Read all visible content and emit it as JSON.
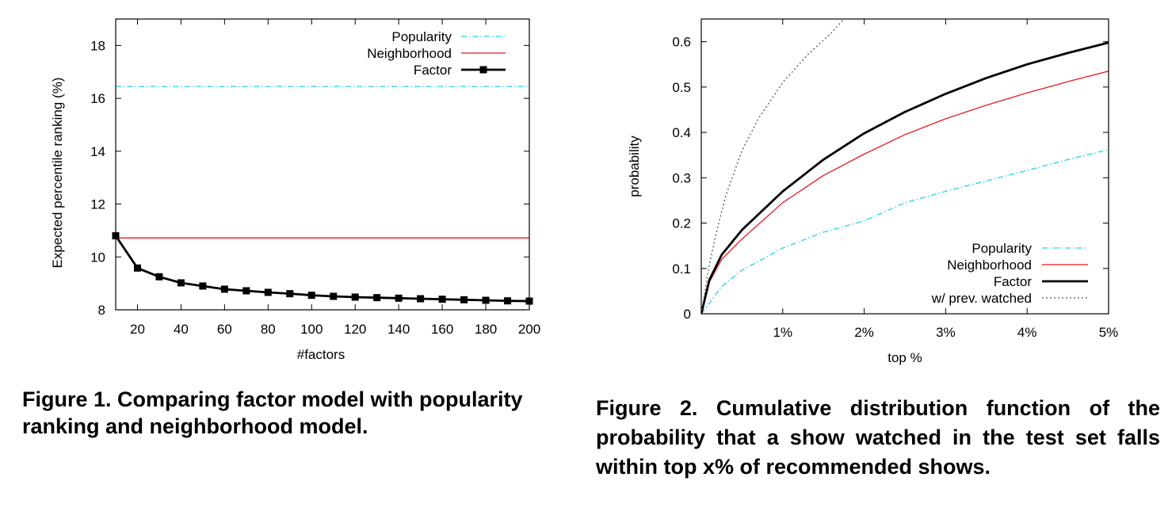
{
  "colors": {
    "popularity": "#22d4e6",
    "neighborhood": "#e8181f",
    "factor": "#000000",
    "prev_watched": "#555555"
  },
  "charts": [
    {
      "chart_data": {
        "type": "line",
        "xlabel": "#factors",
        "ylabel": "Expected percentile ranking (%)",
        "xlim": [
          10,
          200
        ],
        "ylim": [
          8,
          19
        ],
        "xticks": [
          "20",
          "40",
          "60",
          "80",
          "100",
          "120",
          "140",
          "160",
          "180",
          "200"
        ],
        "yticks": [
          "8",
          "10",
          "12",
          "14",
          "16",
          "18"
        ],
        "legend_position": "top-right",
        "grid": false,
        "series": [
          {
            "name": "Popularity",
            "style": "dash-dot",
            "color": "#22d4e6",
            "x": [
              10,
              200
            ],
            "y": [
              16.45,
              16.45
            ]
          },
          {
            "name": "Neighborhood",
            "style": "solid",
            "color": "#e8181f",
            "x": [
              10,
              200
            ],
            "y": [
              10.72,
              10.72
            ]
          },
          {
            "name": "Factor",
            "style": "solid-marker",
            "color": "#000000",
            "x": [
              10,
              20,
              30,
              40,
              50,
              60,
              70,
              80,
              90,
              100,
              110,
              120,
              130,
              140,
              150,
              160,
              170,
              180,
              190,
              200
            ],
            "y": [
              10.8,
              9.58,
              9.25,
              9.02,
              8.9,
              8.78,
              8.72,
              8.66,
              8.61,
              8.55,
              8.51,
              8.48,
              8.46,
              8.44,
              8.42,
              8.4,
              8.38,
              8.36,
              8.34,
              8.33
            ]
          }
        ]
      },
      "caption": "Figure 1. Comparing factor model with popularity ranking and neighborhood model."
    },
    {
      "chart_data": {
        "type": "line",
        "xlabel": "top %",
        "ylabel": "probability",
        "xlim": [
          0,
          5
        ],
        "ylim": [
          0,
          0.65
        ],
        "xticks": [
          "1%",
          "2%",
          "3%",
          "4%",
          "5%"
        ],
        "yticks": [
          "0",
          "0.1",
          "0.2",
          "0.3",
          "0.4",
          "0.5",
          "0.6"
        ],
        "legend_position": "bottom-right",
        "grid": false,
        "series": [
          {
            "name": "Popularity",
            "style": "dash-dot",
            "color": "#22d4e6",
            "x": [
              0,
              0.25,
              0.5,
              1,
              1.5,
              2,
              2.5,
              3,
              3.5,
              4,
              4.5,
              5
            ],
            "y": [
              0,
              0.06,
              0.096,
              0.145,
              0.18,
              0.205,
              0.245,
              0.27,
              0.293,
              0.316,
              0.34,
              0.362
            ]
          },
          {
            "name": "Neighborhood",
            "style": "solid",
            "color": "#e8181f",
            "x": [
              0,
              0.1,
              0.25,
              0.5,
              1,
              1.5,
              2,
              2.5,
              3,
              3.5,
              4,
              4.5,
              5
            ],
            "y": [
              0,
              0.07,
              0.12,
              0.165,
              0.245,
              0.305,
              0.352,
              0.395,
              0.43,
              0.46,
              0.487,
              0.512,
              0.535
            ]
          },
          {
            "name": "Factor",
            "style": "solid-thick",
            "color": "#000000",
            "x": [
              0,
              0.1,
              0.25,
              0.5,
              1,
              1.5,
              2,
              2.5,
              3,
              3.5,
              4,
              4.5,
              5
            ],
            "y": [
              0,
              0.075,
              0.13,
              0.185,
              0.27,
              0.34,
              0.398,
              0.445,
              0.485,
              0.52,
              0.55,
              0.575,
              0.598
            ]
          },
          {
            "name": "w/ prev. watched",
            "style": "dotted",
            "color": "#555555",
            "x": [
              0,
              0.1,
              0.2,
              0.3,
              0.5,
              0.7,
              1,
              1.3,
              1.6,
              1.75
            ],
            "y": [
              0,
              0.11,
              0.19,
              0.26,
              0.36,
              0.43,
              0.51,
              0.57,
              0.62,
              0.65
            ]
          }
        ]
      },
      "caption": "Figure 2. Cumulative distribution function of the probability that a show watched in the test set falls within top x% of recommended shows."
    }
  ]
}
